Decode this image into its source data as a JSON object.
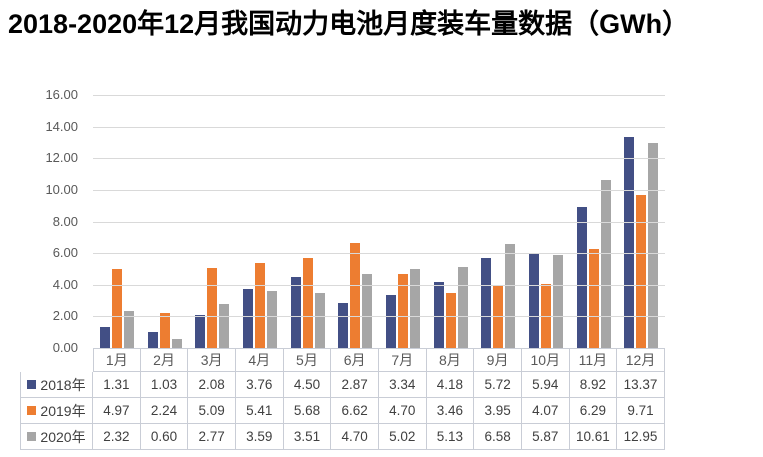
{
  "title": "2018-2020年12月我国动力电池月度装车量数据（GWh）",
  "chart_data": {
    "type": "bar",
    "title": "2018-2020年12月我国动力电池月度装车量数据（GWh）",
    "categories": [
      "1月",
      "2月",
      "3月",
      "4月",
      "5月",
      "6月",
      "7月",
      "8月",
      "9月",
      "10月",
      "11月",
      "12月"
    ],
    "series": [
      {
        "name": "2018年",
        "color": "#424f85",
        "values": [
          1.31,
          1.03,
          2.08,
          3.76,
          4.5,
          2.87,
          3.34,
          4.18,
          5.72,
          5.94,
          8.92,
          13.37
        ]
      },
      {
        "name": "2019年",
        "color": "#ed7d31",
        "values": [
          4.97,
          2.24,
          5.09,
          5.41,
          5.68,
          6.62,
          4.7,
          3.46,
          3.95,
          4.07,
          6.29,
          9.71
        ]
      },
      {
        "name": "2020年",
        "color": "#a6a6a6",
        "values": [
          2.32,
          0.6,
          2.77,
          3.59,
          3.51,
          4.7,
          5.02,
          5.13,
          6.58,
          5.87,
          10.61,
          12.95
        ]
      }
    ],
    "xlabel": "",
    "ylabel": "",
    "ylim": [
      0,
      16
    ],
    "ytick_step": 2,
    "yticks": [
      "16.00",
      "14.00",
      "12.00",
      "10.00",
      "8.00",
      "6.00",
      "4.00",
      "2.00",
      "0.00"
    ],
    "grid": true,
    "legend_position": "table-left",
    "colors": {
      "gridline": "#d9d9d9",
      "table_border": "#c9cdd6",
      "axis_text": "#595959",
      "value_text": "#404040"
    }
  }
}
